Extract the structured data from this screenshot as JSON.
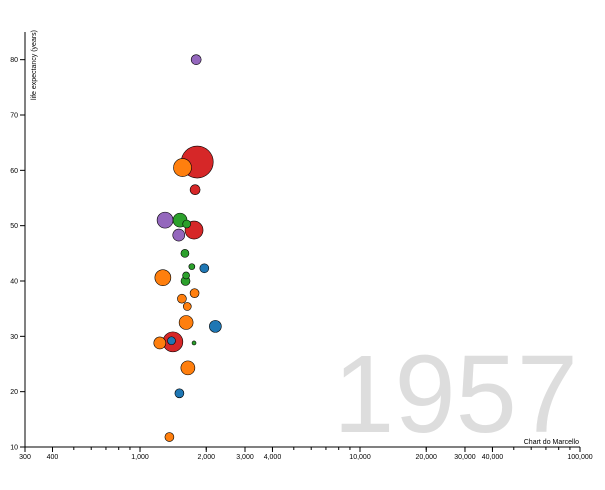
{
  "chart_data": {
    "type": "scatter",
    "title": "",
    "year_label": "1957",
    "xlabel": "Chart do Marcello",
    "ylabel": "life expectancy (years)",
    "x_scale": "log",
    "xlim": [
      300,
      100000
    ],
    "ylim": [
      10,
      85
    ],
    "x_ticks": [
      {
        "value": 300,
        "label": "300"
      },
      {
        "value": 400,
        "label": "400"
      },
      {
        "value": 1000,
        "label": "1,000"
      },
      {
        "value": 2000,
        "label": "2,000"
      },
      {
        "value": 3000,
        "label": "3,000"
      },
      {
        "value": 4000,
        "label": "4,000"
      },
      {
        "value": 10000,
        "label": "10,000"
      },
      {
        "value": 20000,
        "label": "20,000"
      },
      {
        "value": 30000,
        "label": "30,000"
      },
      {
        "value": 40000,
        "label": "40,000"
      },
      {
        "value": 100000,
        "label": "100,000"
      }
    ],
    "y_ticks": [
      {
        "value": 10,
        "label": "10"
      },
      {
        "value": 20,
        "label": "20"
      },
      {
        "value": 30,
        "label": "30"
      },
      {
        "value": 40,
        "label": "40"
      },
      {
        "value": 50,
        "label": "50"
      },
      {
        "value": 60,
        "label": "60"
      },
      {
        "value": 70,
        "label": "70"
      },
      {
        "value": 80,
        "label": "80"
      }
    ],
    "grid": false,
    "colors": {
      "blue": "#1f77b4",
      "orange": "#ff7f0e",
      "green": "#2ca02c",
      "red": "#d62728",
      "purple": "#9467bd"
    },
    "points": [
      {
        "x": 1820,
        "y": 61.5,
        "size": 16,
        "color": "red"
      },
      {
        "x": 1800,
        "y": 80,
        "size": 5,
        "color": "purple"
      },
      {
        "x": 1560,
        "y": 60.5,
        "size": 9,
        "color": "orange"
      },
      {
        "x": 1780,
        "y": 56.5,
        "size": 5,
        "color": "red"
      },
      {
        "x": 1300,
        "y": 51,
        "size": 8,
        "color": "purple"
      },
      {
        "x": 1520,
        "y": 51,
        "size": 7,
        "color": "green"
      },
      {
        "x": 1630,
        "y": 50.3,
        "size": 4,
        "color": "green"
      },
      {
        "x": 1760,
        "y": 49.2,
        "size": 9,
        "color": "red"
      },
      {
        "x": 1500,
        "y": 48.3,
        "size": 6,
        "color": "purple"
      },
      {
        "x": 1600,
        "y": 45,
        "size": 4,
        "color": "green"
      },
      {
        "x": 1720,
        "y": 42.6,
        "size": 3,
        "color": "green"
      },
      {
        "x": 1960,
        "y": 42.3,
        "size": 4.5,
        "color": "blue"
      },
      {
        "x": 1620,
        "y": 41,
        "size": 3.5,
        "color": "green"
      },
      {
        "x": 1270,
        "y": 40.6,
        "size": 8,
        "color": "orange"
      },
      {
        "x": 1610,
        "y": 40,
        "size": 4.5,
        "color": "green"
      },
      {
        "x": 1770,
        "y": 37.8,
        "size": 4.5,
        "color": "orange"
      },
      {
        "x": 1550,
        "y": 36.8,
        "size": 4.5,
        "color": "orange"
      },
      {
        "x": 1640,
        "y": 35.4,
        "size": 4,
        "color": "orange"
      },
      {
        "x": 1620,
        "y": 32.5,
        "size": 7,
        "color": "orange"
      },
      {
        "x": 2200,
        "y": 31.8,
        "size": 6,
        "color": "blue"
      },
      {
        "x": 1410,
        "y": 29,
        "size": 10,
        "color": "red"
      },
      {
        "x": 1230,
        "y": 28.8,
        "size": 6,
        "color": "orange"
      },
      {
        "x": 1390,
        "y": 29.2,
        "size": 4,
        "color": "blue"
      },
      {
        "x": 1760,
        "y": 28.8,
        "size": 2,
        "color": "green"
      },
      {
        "x": 1650,
        "y": 24.3,
        "size": 7,
        "color": "orange"
      },
      {
        "x": 1510,
        "y": 19.7,
        "size": 4.5,
        "color": "blue"
      },
      {
        "x": 1360,
        "y": 11.8,
        "size": 4.5,
        "color": "orange"
      }
    ]
  }
}
